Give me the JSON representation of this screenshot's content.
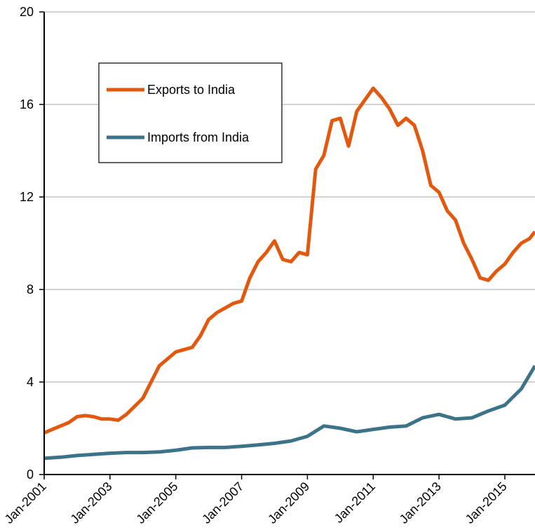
{
  "chart_data": {
    "type": "line",
    "title": "",
    "xlabel": "",
    "ylabel": "",
    "ylim": [
      0,
      20
    ],
    "yticks": [
      "0",
      "4",
      "8",
      "12",
      "16",
      "20"
    ],
    "xlim": [
      "Jan-2001",
      "Dec-2015"
    ],
    "xtick_labels": [
      "Jan-2001",
      "Jan-2003",
      "Jan-2005",
      "Jan-2007",
      "Jan-2009",
      "Jan-2011",
      "Jan-2013",
      "Jan-2015"
    ],
    "grid": "horizontal",
    "legend_position": "top-left inside plot",
    "colors": {
      "exports": "#E2580E",
      "imports": "#3D7389"
    },
    "series": [
      {
        "name": "Exports to India",
        "points": [
          [
            "2001-01",
            1.8
          ],
          [
            "2001-04",
            1.95
          ],
          [
            "2001-07",
            2.1
          ],
          [
            "2001-10",
            2.25
          ],
          [
            "2002-01",
            2.5
          ],
          [
            "2002-04",
            2.55
          ],
          [
            "2002-07",
            2.5
          ],
          [
            "2002-10",
            2.4
          ],
          [
            "2003-01",
            2.4
          ],
          [
            "2003-04",
            2.35
          ],
          [
            "2003-07",
            2.6
          ],
          [
            "2003-10",
            2.95
          ],
          [
            "2004-01",
            3.3
          ],
          [
            "2004-04",
            4.0
          ],
          [
            "2004-07",
            4.7
          ],
          [
            "2004-10",
            5.0
          ],
          [
            "2005-01",
            5.3
          ],
          [
            "2005-04",
            5.4
          ],
          [
            "2005-07",
            5.5
          ],
          [
            "2005-10",
            6.0
          ],
          [
            "2006-01",
            6.7
          ],
          [
            "2006-04",
            7.0
          ],
          [
            "2006-07",
            7.2
          ],
          [
            "2006-10",
            7.4
          ],
          [
            "2007-01",
            7.5
          ],
          [
            "2007-04",
            8.5
          ],
          [
            "2007-07",
            9.2
          ],
          [
            "2007-10",
            9.6
          ],
          [
            "2008-01",
            10.1
          ],
          [
            "2008-04",
            9.3
          ],
          [
            "2008-07",
            9.2
          ],
          [
            "2008-10",
            9.6
          ],
          [
            "2009-01",
            9.5
          ],
          [
            "2009-04",
            13.2
          ],
          [
            "2009-07",
            13.8
          ],
          [
            "2009-10",
            15.3
          ],
          [
            "2010-01",
            15.4
          ],
          [
            "2010-04",
            14.2
          ],
          [
            "2010-07",
            15.7
          ],
          [
            "2010-10",
            16.2
          ],
          [
            "2011-01",
            16.7
          ],
          [
            "2011-04",
            16.3
          ],
          [
            "2011-07",
            15.8
          ],
          [
            "2011-10",
            15.1
          ],
          [
            "2012-01",
            15.4
          ],
          [
            "2012-04",
            15.1
          ],
          [
            "2012-07",
            14.0
          ],
          [
            "2012-10",
            12.5
          ],
          [
            "2013-01",
            12.2
          ],
          [
            "2013-04",
            11.4
          ],
          [
            "2013-07",
            11.0
          ],
          [
            "2013-10",
            10.0
          ],
          [
            "2014-01",
            9.3
          ],
          [
            "2014-04",
            8.5
          ],
          [
            "2014-07",
            8.4
          ],
          [
            "2014-10",
            8.8
          ],
          [
            "2015-01",
            9.1
          ],
          [
            "2015-04",
            9.6
          ],
          [
            "2015-07",
            10.0
          ],
          [
            "2015-10",
            10.2
          ],
          [
            "2015-12",
            10.5
          ]
        ]
      },
      {
        "name": "Imports from India",
        "points": [
          [
            "2001-01",
            0.7
          ],
          [
            "2001-07",
            0.75
          ],
          [
            "2002-01",
            0.82
          ],
          [
            "2002-07",
            0.87
          ],
          [
            "2003-01",
            0.92
          ],
          [
            "2003-07",
            0.95
          ],
          [
            "2004-01",
            0.95
          ],
          [
            "2004-07",
            0.98
          ],
          [
            "2005-01",
            1.05
          ],
          [
            "2005-07",
            1.15
          ],
          [
            "2006-01",
            1.17
          ],
          [
            "2006-07",
            1.17
          ],
          [
            "2007-01",
            1.22
          ],
          [
            "2007-07",
            1.28
          ],
          [
            "2008-01",
            1.35
          ],
          [
            "2008-07",
            1.45
          ],
          [
            "2009-01",
            1.65
          ],
          [
            "2009-07",
            2.1
          ],
          [
            "2010-01",
            2.0
          ],
          [
            "2010-07",
            1.85
          ],
          [
            "2011-01",
            1.95
          ],
          [
            "2011-07",
            2.05
          ],
          [
            "2012-01",
            2.1
          ],
          [
            "2012-07",
            2.45
          ],
          [
            "2013-01",
            2.6
          ],
          [
            "2013-07",
            2.4
          ],
          [
            "2014-01",
            2.45
          ],
          [
            "2014-07",
            2.75
          ],
          [
            "2015-01",
            3.0
          ],
          [
            "2015-07",
            3.7
          ],
          [
            "2015-12",
            4.7
          ]
        ]
      }
    ]
  }
}
